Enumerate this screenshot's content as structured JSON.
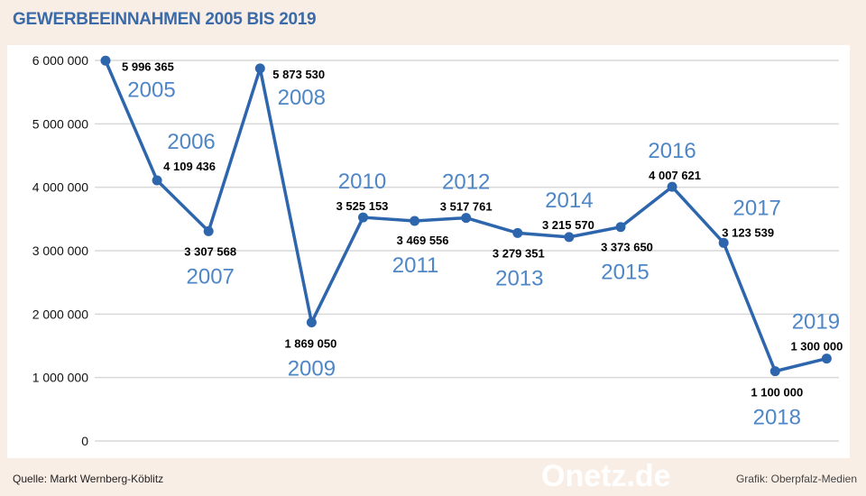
{
  "title": "GEWERBEEINNAHMEN 2005 BIS 2019",
  "source": "Quelle: Markt Wernberg-Köblitz",
  "credit": "Grafik: Oberpfalz-Medien",
  "watermark": "Onetz.de",
  "colors": {
    "line": "#2e66ad",
    "year_label": "#4f86c6",
    "background": "#f9eee6",
    "grid": "#d9d9d9"
  },
  "chart_data": {
    "type": "line",
    "title": "GEWERBEEINNAHMEN 2005 BIS 2019",
    "x": [
      "2005",
      "2006",
      "2007",
      "2008",
      "2009",
      "2010",
      "2011",
      "2012",
      "2013",
      "2014",
      "2015",
      "2016",
      "2017",
      "2018",
      "2019"
    ],
    "values": [
      5996365,
      4109436,
      3307568,
      5873530,
      1869050,
      3525153,
      3469556,
      3517761,
      3279351,
      3215570,
      3373650,
      4007621,
      3123539,
      1100000,
      1300000
    ],
    "value_labels": [
      "5 996 365",
      "4 109 436",
      "3 307 568",
      "5 873 530",
      "1 869 050",
      "3 525 153",
      "3 469 556",
      "3 517 761",
      "3 279 351",
      "3 215 570",
      "3 373 650",
      "4 007 621",
      "3 123 539",
      "1 100 000",
      "1 300 000"
    ],
    "ylim": [
      0,
      6000000
    ],
    "yticks": [
      0,
      1000000,
      2000000,
      3000000,
      4000000,
      5000000,
      6000000
    ],
    "ytick_labels": [
      "0",
      "1 000 000",
      "2 000 000",
      "3 000 000",
      "4 000 000",
      "5 000 000",
      "6 000 000"
    ],
    "grid": true,
    "legend": "none",
    "xlabel": "",
    "ylabel": ""
  }
}
